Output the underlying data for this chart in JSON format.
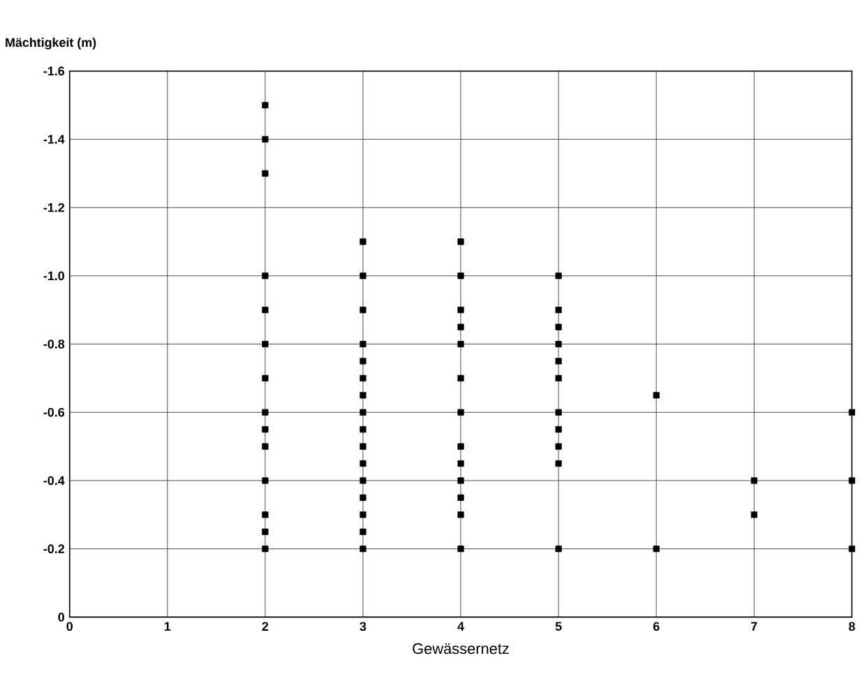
{
  "chart_data": {
    "type": "scatter",
    "xlabel": "Gewässernetz",
    "ylabel": "Mächtigkeit (m)",
    "xlim": [
      0,
      8
    ],
    "xticks": [
      0,
      1,
      2,
      3,
      4,
      5,
      6,
      7,
      8
    ],
    "ylim": [
      0,
      -1.6
    ],
    "yticks": [
      0,
      -0.2,
      -0.4,
      -0.6,
      -0.8,
      {
        "value": -1.0,
        "label": "-1.0"
      },
      -1.2,
      -1.4,
      -1.6
    ],
    "grid": true,
    "marker": "square",
    "series": [
      {
        "color": "#000000",
        "x": [
          2,
          2,
          2,
          2,
          2,
          2,
          2,
          2,
          2,
          2,
          2,
          2,
          2,
          2,
          3,
          3,
          3,
          3,
          3,
          3,
          3,
          3,
          3,
          3,
          3,
          3,
          3,
          3,
          3,
          3,
          4,
          4,
          4,
          4,
          4,
          4,
          4,
          4,
          4,
          4,
          4,
          4,
          4,
          5,
          5,
          5,
          5,
          5,
          5,
          5,
          5,
          5,
          5,
          5,
          6,
          6,
          7,
          7,
          8,
          8,
          8
        ],
        "values": [
          -1.5,
          -1.4,
          -1.3,
          -1.0,
          -0.9,
          -0.8,
          -0.7,
          -0.6,
          -0.55,
          -0.5,
          -0.4,
          -0.3,
          -0.25,
          -0.2,
          -1.1,
          -1.0,
          -0.9,
          -0.8,
          -0.75,
          -0.7,
          -0.65,
          -0.6,
          -0.55,
          -0.5,
          -0.45,
          -0.4,
          -0.35,
          -0.3,
          -0.25,
          -0.2,
          -1.1,
          -1.0,
          -0.9,
          -0.85,
          -0.8,
          -0.7,
          -0.6,
          -0.5,
          -0.45,
          -0.4,
          -0.35,
          -0.3,
          -0.2,
          -1.0,
          -0.9,
          -0.85,
          -0.8,
          -0.75,
          -0.7,
          -0.6,
          -0.55,
          -0.5,
          -0.45,
          -0.2,
          -0.65,
          -0.2,
          -0.4,
          -0.3,
          -0.6,
          -0.4,
          -0.2
        ]
      }
    ]
  }
}
